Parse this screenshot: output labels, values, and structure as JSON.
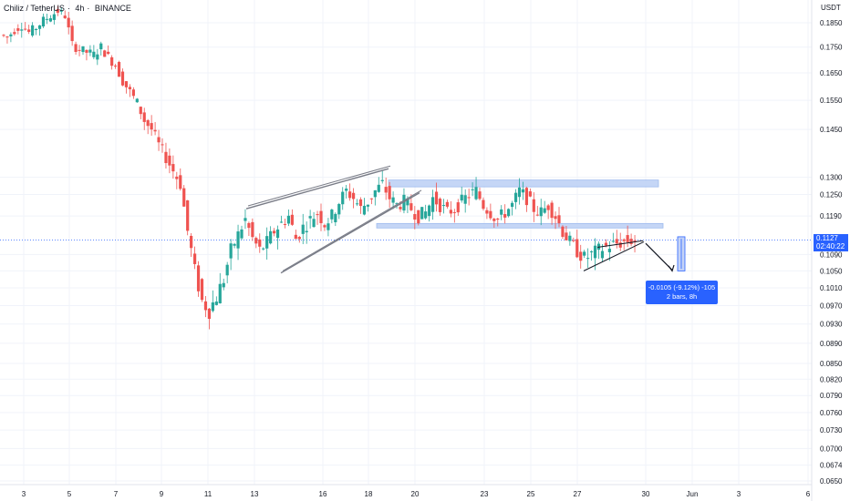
{
  "header": {
    "symbol": "Chiliz / TetherUS",
    "interval": "4h",
    "exchange": "BINANCE"
  },
  "axis": {
    "unit": "USDT",
    "price_ticks": [
      "0.1850",
      "0.1750",
      "0.1650",
      "0.1550",
      "0.1450",
      "0.1300",
      "0.1250",
      "0.1190",
      "0.1090",
      "0.1050",
      "0.1010",
      "0.0970",
      "0.0930",
      "0.0890",
      "0.0850",
      "0.0820",
      "0.0790",
      "0.0760",
      "0.0730",
      "0.0700",
      "0.0674",
      "0.0650"
    ],
    "date_ticks": [
      "3",
      "5",
      "7",
      "9",
      "11",
      "13",
      "16",
      "18",
      "20",
      "23",
      "25",
      "27",
      "30",
      "Jun",
      "3",
      "6"
    ]
  },
  "current_price": {
    "value": "0.1127",
    "countdown": "02:40:22"
  },
  "measure": {
    "line1": "-0.0105 (-9.12%) -105",
    "line2": "2 bars, 8h"
  },
  "colors": {
    "up": "#26a69a",
    "down": "#ef5350",
    "zone": "#bbd0f5",
    "zone_border": "#8fb0ec",
    "accent": "#2962ff"
  },
  "chart_data": {
    "type": "candlestick",
    "pair": "CHZ/USDT",
    "timeframe": "4h",
    "ylim": [
      0.065,
      0.19
    ],
    "y_scale": "log",
    "last_price": 0.1127,
    "close_path": [
      0.18,
      0.179,
      0.182,
      0.184,
      0.181,
      0.183,
      0.186,
      0.188,
      0.19,
      0.188,
      0.176,
      0.174,
      0.173,
      0.172,
      0.175,
      0.171,
      0.168,
      0.162,
      0.158,
      0.154,
      0.148,
      0.145,
      0.14,
      0.136,
      0.132,
      0.128,
      0.115,
      0.105,
      0.098,
      0.096,
      0.099,
      0.103,
      0.11,
      0.114,
      0.118,
      0.113,
      0.11,
      0.112,
      0.115,
      0.117,
      0.119,
      0.113,
      0.116,
      0.118,
      0.12,
      0.117,
      0.119,
      0.123,
      0.126,
      0.124,
      0.121,
      0.123,
      0.126,
      0.128,
      0.124,
      0.122,
      0.123,
      0.121,
      0.119,
      0.12,
      0.124,
      0.122,
      0.12,
      0.121,
      0.123,
      0.125,
      0.126,
      0.122,
      0.12,
      0.118,
      0.12,
      0.122,
      0.126,
      0.124,
      0.121,
      0.12,
      0.122,
      0.119,
      0.115,
      0.112,
      0.11,
      0.108,
      0.109,
      0.11,
      0.111,
      0.1115,
      0.112,
      0.1125,
      0.1127
    ]
  }
}
